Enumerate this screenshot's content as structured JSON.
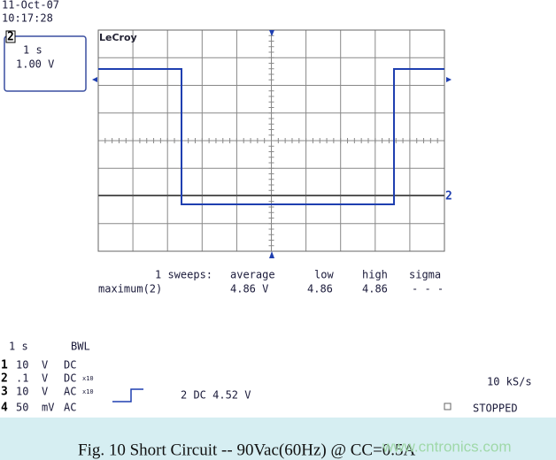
{
  "header": {
    "date": "11-Oct-07",
    "time": "10:17:28"
  },
  "timebase_box": {
    "channel": "2",
    "time_per_div": "1 s",
    "volts_per_div": "1.00 V"
  },
  "logo": "LeCroy",
  "trace_marker": "2",
  "stats": {
    "headers": [
      "1 sweeps:",
      "average",
      "low",
      "high",
      "sigma"
    ],
    "row": [
      "maximum(2)",
      "4.86 V",
      "4.86",
      "4.86",
      "- - -"
    ]
  },
  "settings": {
    "timebase": "1 s",
    "bandwidth": "BWL",
    "channels": [
      [
        "1",
        "10",
        "V",
        "DC",
        ""
      ],
      [
        "2",
        ".1",
        "V",
        "DC",
        "x10"
      ],
      [
        "3",
        "10",
        "V",
        "AC",
        "x10"
      ],
      [
        "4",
        "50",
        "mV",
        "AC",
        ""
      ]
    ]
  },
  "trigger": "2 DC 4.52 V",
  "sample_rate": "10 kS/s",
  "status": "STOPPED",
  "caption": "Fig. 10  Short Circuit  --  90Vac(60Hz) @ CC=0.5A",
  "watermark": "www.cntronics.com"
}
